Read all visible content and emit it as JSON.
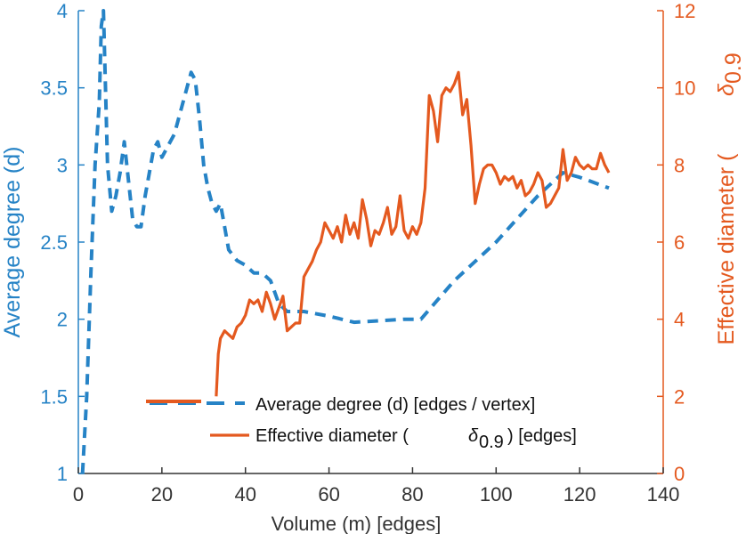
{
  "chart_data": {
    "type": "line",
    "title": "",
    "xlabel": "Volume (m) [edges]",
    "ylabel_left": "Average degree (d)",
    "ylabel_right_prefix": "Effective diameter (",
    "ylabel_right_symbol": "δ",
    "ylabel_right_subscript": "0.9",
    "xlim": [
      0,
      140
    ],
    "xticks": [
      "0",
      "20",
      "40",
      "60",
      "80",
      "100",
      "120",
      "140"
    ],
    "ylim_left": [
      1,
      4
    ],
    "yticks_left": [
      "1",
      "1.5",
      "2",
      "2.5",
      "3",
      "3.5",
      "4"
    ],
    "ylim_right": [
      0,
      12
    ],
    "yticks_right": [
      "0",
      "2",
      "4",
      "6",
      "8",
      "10",
      "12"
    ],
    "grid": false,
    "legend_position": "bottom-center",
    "colors": {
      "left": "#2683c6",
      "right": "#e4591f"
    },
    "legend": {
      "series1": "Average degree (d) [edges / vertex]",
      "series2_prefix": "Effective diameter (",
      "series2_symbol": "δ",
      "series2_subscript": "0.9",
      "series2_suffix": ") [edges]"
    },
    "series": [
      {
        "name": "Average degree (d) [edges / vertex]",
        "axis": "left",
        "style": "dashed",
        "x": [
          1,
          2,
          3,
          4,
          5,
          5.5,
          6,
          6.5,
          7,
          8,
          9,
          10,
          11,
          12,
          13,
          14,
          15,
          16,
          17,
          18,
          19,
          20,
          21,
          22,
          23,
          24,
          25,
          26,
          27,
          28,
          29,
          30,
          31,
          32,
          33,
          34,
          35,
          36,
          38,
          40,
          42,
          44,
          46,
          48,
          50,
          52,
          54,
          60,
          66,
          72,
          78,
          82,
          90,
          100,
          110,
          116,
          120,
          124,
          127
        ],
        "y": [
          1.0,
          1.5,
          2.3,
          3.0,
          3.4,
          3.9,
          4.0,
          3.5,
          3.0,
          2.7,
          2.8,
          2.95,
          3.15,
          2.9,
          2.65,
          2.6,
          2.6,
          2.8,
          2.95,
          3.1,
          3.15,
          3.05,
          3.1,
          3.15,
          3.2,
          3.3,
          3.4,
          3.5,
          3.6,
          3.55,
          3.3,
          3.0,
          2.85,
          2.75,
          2.7,
          2.75,
          2.6,
          2.45,
          2.38,
          2.35,
          2.3,
          2.3,
          2.25,
          2.1,
          2.05,
          2.05,
          2.05,
          2.02,
          1.98,
          1.99,
          2.0,
          2.0,
          2.25,
          2.5,
          2.8,
          2.95,
          2.92,
          2.88,
          2.85
        ]
      },
      {
        "name": "Effective diameter (δ0.9) [edges]",
        "axis": "right",
        "style": "solid",
        "x": [
          33,
          33.5,
          34,
          35,
          36,
          37,
          38,
          39,
          40,
          41,
          42,
          43,
          44,
          45,
          46,
          47,
          48,
          49,
          50,
          51,
          52,
          53,
          54,
          55,
          56,
          57,
          58,
          59,
          60,
          61,
          62,
          63,
          64,
          65,
          66,
          67,
          68,
          69,
          70,
          71,
          72,
          73,
          74,
          75,
          76,
          77,
          78,
          79,
          80,
          81,
          82,
          83,
          84,
          85,
          86,
          87,
          88,
          89,
          90,
          91,
          92,
          93,
          94,
          95,
          96,
          97,
          98,
          99,
          100,
          101,
          102,
          103,
          104,
          105,
          106,
          107,
          108,
          109,
          110,
          111,
          112,
          113,
          114,
          115,
          116,
          117,
          118,
          119,
          120,
          121,
          122,
          123,
          124,
          125,
          126,
          127
        ],
        "y": [
          2.0,
          3.1,
          3.5,
          3.7,
          3.6,
          3.5,
          3.8,
          3.9,
          4.1,
          4.5,
          4.4,
          4.5,
          4.2,
          4.7,
          4.4,
          4.0,
          4.3,
          4.6,
          3.7,
          3.8,
          3.9,
          3.9,
          5.1,
          5.3,
          5.5,
          5.8,
          6.0,
          6.5,
          6.3,
          6.1,
          6.4,
          6.0,
          6.7,
          6.2,
          6.5,
          6.1,
          7.1,
          6.6,
          5.9,
          6.3,
          6.2,
          6.5,
          6.9,
          6.2,
          6.4,
          7.2,
          6.3,
          6.1,
          6.4,
          6.2,
          6.5,
          7.4,
          9.8,
          9.4,
          8.6,
          9.8,
          10.0,
          9.9,
          10.1,
          10.4,
          9.3,
          9.7,
          8.5,
          7.0,
          7.5,
          7.9,
          8.0,
          8.0,
          7.8,
          7.5,
          7.7,
          7.6,
          7.7,
          7.4,
          7.6,
          7.2,
          7.3,
          7.5,
          7.8,
          7.6,
          6.9,
          7.0,
          7.2,
          7.4,
          8.4,
          7.6,
          7.8,
          8.2,
          8.0,
          7.9,
          8.0,
          7.9,
          7.9,
          8.3,
          8.0,
          7.8
        ]
      }
    ]
  }
}
